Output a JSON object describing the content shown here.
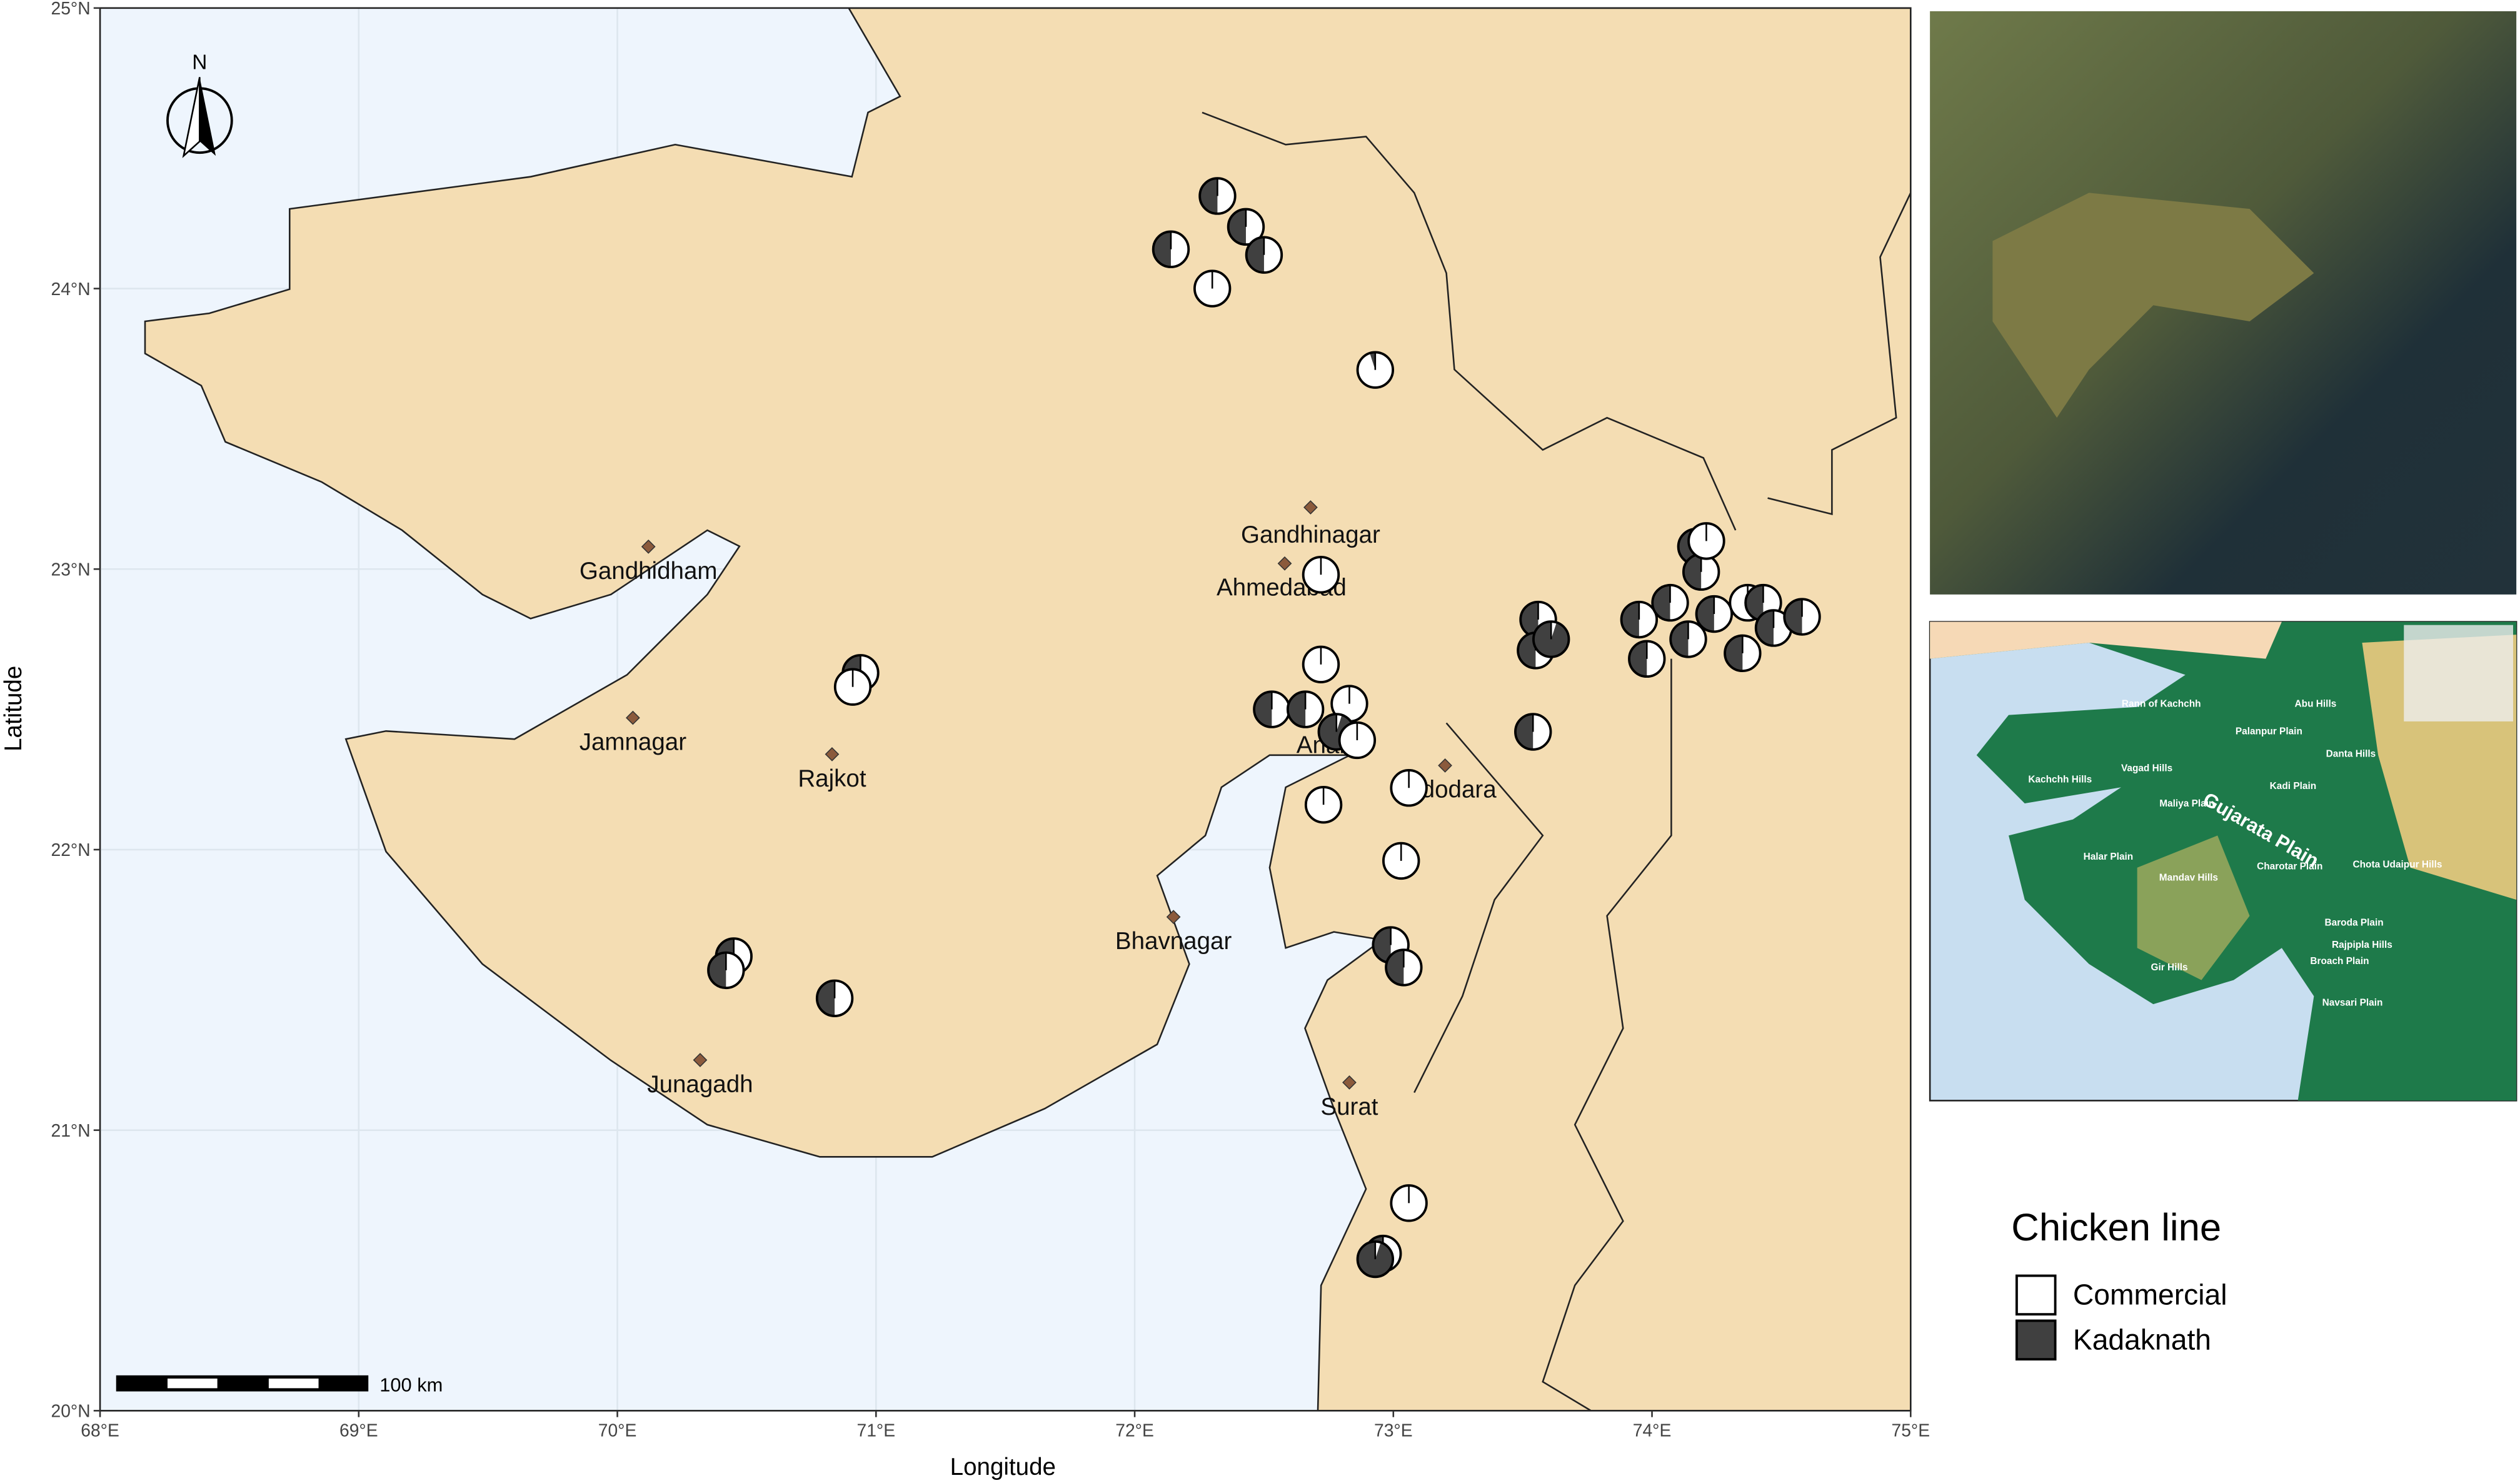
{
  "map": {
    "x_label": "Longitude",
    "y_label": "Latitude",
    "xlim": [
      68,
      75
    ],
    "ylim": [
      20,
      25
    ],
    "xticks": [
      {
        "value": 68,
        "label": "68°E"
      },
      {
        "value": 69,
        "label": "69°E"
      },
      {
        "value": 70,
        "label": "70°E"
      },
      {
        "value": 71,
        "label": "71°E"
      },
      {
        "value": 72,
        "label": "72°E"
      },
      {
        "value": 73,
        "label": "73°E"
      },
      {
        "value": 74,
        "label": "74°E"
      },
      {
        "value": 75,
        "label": "75°E"
      }
    ],
    "yticks": [
      {
        "value": 20,
        "label": "20°N"
      },
      {
        "value": 21,
        "label": "21°N"
      },
      {
        "value": 22,
        "label": "22°N"
      },
      {
        "value": 23,
        "label": "23°N"
      },
      {
        "value": 24,
        "label": "24°N"
      },
      {
        "value": 25,
        "label": "25°N"
      }
    ],
    "north": "N",
    "scale_label": "100 km",
    "cities": [
      {
        "name": "Gandhinagar",
        "lon": 72.68,
        "lat": 23.22
      },
      {
        "name": "Ahmedabad",
        "lon": 72.58,
        "lat": 23.02
      },
      {
        "name": "Gandhidham",
        "lon": 70.12,
        "lat": 23.08
      },
      {
        "name": "Jamnagar",
        "lon": 70.06,
        "lat": 22.47
      },
      {
        "name": "Rajkot",
        "lon": 70.83,
        "lat": 22.34
      },
      {
        "name": "Anand",
        "lon": 72.76,
        "lat": 22.39
      },
      {
        "name": "Vadodara",
        "lon": 73.2,
        "lat": 22.3
      },
      {
        "name": "Bhavnagar",
        "lon": 72.15,
        "lat": 21.76
      },
      {
        "name": "Junagadh",
        "lon": 70.32,
        "lat": 21.25
      },
      {
        "name": "Surat",
        "lon": 72.83,
        "lat": 21.17
      }
    ],
    "legend": {
      "title": "Chicken line",
      "entries": [
        {
          "name": "Commercial",
          "color": "#ffffff"
        },
        {
          "name": "Kadaknath",
          "color": "#404040"
        }
      ]
    },
    "points": [
      {
        "lon": 72.32,
        "lat": 24.33,
        "commercial": 0.5
      },
      {
        "lon": 72.43,
        "lat": 24.22,
        "commercial": 0.5
      },
      {
        "lon": 72.5,
        "lat": 24.12,
        "commercial": 0.5
      },
      {
        "lon": 72.14,
        "lat": 24.14,
        "commercial": 0.5
      },
      {
        "lon": 72.3,
        "lat": 24.0,
        "commercial": 1
      },
      {
        "lon": 72.93,
        "lat": 23.71,
        "commercial": 0.95
      },
      {
        "lon": 72.72,
        "lat": 22.98,
        "commercial": 1
      },
      {
        "lon": 72.72,
        "lat": 22.66,
        "commercial": 1
      },
      {
        "lon": 72.83,
        "lat": 22.52,
        "commercial": 1
      },
      {
        "lon": 72.53,
        "lat": 22.5,
        "commercial": 0.5
      },
      {
        "lon": 72.66,
        "lat": 22.5,
        "commercial": 0.5
      },
      {
        "lon": 72.78,
        "lat": 22.42,
        "commercial": 0.05
      },
      {
        "lon": 72.86,
        "lat": 22.39,
        "commercial": 1
      },
      {
        "lon": 73.06,
        "lat": 22.22,
        "commercial": 1
      },
      {
        "lon": 72.73,
        "lat": 22.16,
        "commercial": 1
      },
      {
        "lon": 73.03,
        "lat": 21.96,
        "commercial": 1
      },
      {
        "lon": 72.99,
        "lat": 21.66,
        "commercial": 0.5
      },
      {
        "lon": 73.04,
        "lat": 21.58,
        "commercial": 0.5
      },
      {
        "lon": 73.06,
        "lat": 20.74,
        "commercial": 1
      },
      {
        "lon": 72.96,
        "lat": 20.56,
        "commercial": 0.5
      },
      {
        "lon": 72.93,
        "lat": 20.54,
        "commercial": 0.05
      },
      {
        "lon": 70.94,
        "lat": 22.63,
        "commercial": 0.5
      },
      {
        "lon": 70.91,
        "lat": 22.58,
        "commercial": 1
      },
      {
        "lon": 70.45,
        "lat": 21.62,
        "commercial": 0.5
      },
      {
        "lon": 70.42,
        "lat": 21.57,
        "commercial": 0.5
      },
      {
        "lon": 70.84,
        "lat": 21.47,
        "commercial": 0.5
      },
      {
        "lon": 73.56,
        "lat": 22.82,
        "commercial": 0.5
      },
      {
        "lon": 73.55,
        "lat": 22.71,
        "commercial": 0.5
      },
      {
        "lon": 73.61,
        "lat": 22.75,
        "commercial": 0.05
      },
      {
        "lon": 73.54,
        "lat": 22.42,
        "commercial": 0.5
      },
      {
        "lon": 74.17,
        "lat": 23.08,
        "commercial": 0.5
      },
      {
        "lon": 74.19,
        "lat": 22.99,
        "commercial": 0.5
      },
      {
        "lon": 73.95,
        "lat": 22.82,
        "commercial": 0.5
      },
      {
        "lon": 74.07,
        "lat": 22.88,
        "commercial": 0.5
      },
      {
        "lon": 73.98,
        "lat": 22.68,
        "commercial": 0.5
      },
      {
        "lon": 74.14,
        "lat": 22.75,
        "commercial": 0.5
      },
      {
        "lon": 74.24,
        "lat": 22.84,
        "commercial": 0.5
      },
      {
        "lon": 74.37,
        "lat": 22.88,
        "commercial": 1
      },
      {
        "lon": 74.43,
        "lat": 22.88,
        "commercial": 0.5
      },
      {
        "lon": 74.35,
        "lat": 22.7,
        "commercial": 0.5
      },
      {
        "lon": 74.47,
        "lat": 22.79,
        "commercial": 0.5
      },
      {
        "lon": 74.58,
        "lat": 22.83,
        "commercial": 0.5
      },
      {
        "lon": 74.21,
        "lat": 23.1,
        "commercial": 1
      }
    ],
    "inset_labels": [
      "Rann of Kachchh",
      "Palanpur Plain",
      "Abu Hills",
      "Danta Hills",
      "Kachchh Hills",
      "Vagad Hills",
      "Maliya Plain",
      "Kadi Plain",
      "Gujarata Plain",
      "Halar Plain",
      "Mandav Hills",
      "Charotar Plain",
      "Chota Udaipur Hills",
      "Baroda Plain",
      "Rajpipla Hills",
      "Broach Plain",
      "Navsari Plain",
      "Gir Hills"
    ]
  }
}
